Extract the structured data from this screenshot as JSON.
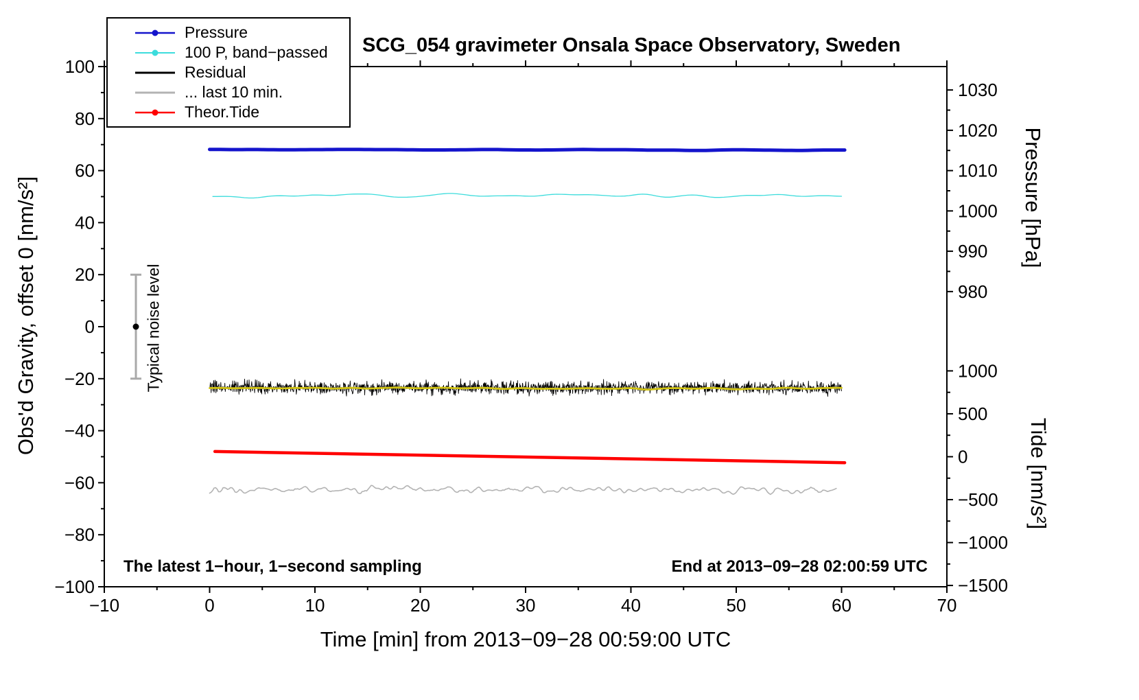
{
  "chart_data": {
    "type": "line",
    "title": "SCG_054 gravimeter Onsala Space Observatory, Sweden",
    "annotations": {
      "sampling": "The latest 1−hour, 1−second sampling",
      "end_time": "End at 2013−09−28 02:00:59 UTC"
    },
    "axes": {
      "x": {
        "label": "Time [min] from 2013−09−28 00:59:00 UTC",
        "min": -10,
        "max": 70,
        "ticks": [
          -10,
          0,
          10,
          20,
          30,
          40,
          50,
          60,
          70
        ],
        "minor_step": 5
      },
      "y_left": {
        "label": "Obs'd Gravity, offset 0 [nm/s²]",
        "min": -100,
        "max": 100,
        "ticks": [
          -100,
          -80,
          -60,
          -40,
          -20,
          0,
          20,
          40,
          60,
          80,
          100
        ],
        "minor_step": 10
      },
      "y_pressure": {
        "label": "Pressure [hPa]",
        "ticks": [
          {
            "value": 1030,
            "pos": 91.0
          },
          {
            "value": 1020,
            "pos": 75.5
          },
          {
            "value": 1010,
            "pos": 60.0
          },
          {
            "value": 1000,
            "pos": 44.5
          },
          {
            "value": 990,
            "pos": 29.0
          },
          {
            "value": 980,
            "pos": 13.5
          }
        ]
      },
      "y_tide": {
        "label": "Tide [nm/s²]",
        "ticks": [
          {
            "value": 1000,
            "pos": -17.0
          },
          {
            "value": 500,
            "pos": -33.5
          },
          {
            "value": 0,
            "pos": -50.0
          },
          {
            "value": -500,
            "pos": -66.5
          },
          {
            "value": -1000,
            "pos": -83.0
          },
          {
            "value": -1500,
            "pos": -99.5
          }
        ]
      }
    },
    "legend": {
      "items": [
        {
          "label": "Pressure",
          "color": "#1414cc",
          "marker": true,
          "line_width": 2.5
        },
        {
          "label": "100 P, band−passed",
          "color": "#3cdcdc",
          "marker": true,
          "line_width": 2.0
        },
        {
          "label": "Residual",
          "color": "#000000",
          "marker": false,
          "line_width": 3.0
        },
        {
          "label": "... last 10 min.",
          "color": "#b3b3b3",
          "marker": false,
          "line_width": 3.0
        },
        {
          "label": "Theor.Tide",
          "color": "#ff0000",
          "marker": true,
          "line_width": 2.5
        }
      ]
    },
    "noise_marker": {
      "label": "Typical noise level",
      "x": -7,
      "y": 0,
      "half_range": 20,
      "bar_color": "#a9a9a9",
      "dot_color": "#000000"
    },
    "series": [
      {
        "name": "Pressure",
        "color": "#1414cc",
        "width": 5.0,
        "x_start": 0.0,
        "x_end": 60.3,
        "y_start": 68.1,
        "y_end": 68.0,
        "points": 120,
        "smooth": 10,
        "noise_amp": 0.3,
        "seed": 11,
        "axis_note": "≈1014 hPa on pressure axis"
      },
      {
        "name": "100 P, band−passed",
        "color": "#3cdcdc",
        "width": 1.3,
        "x_start": 0.3,
        "x_end": 60.0,
        "y_start": 50.7,
        "y_end": 50.2,
        "points": 140,
        "smooth": 7,
        "noise_amp": 1.2,
        "seed": 22
      },
      {
        "name": "Residual",
        "color": "#000000",
        "width": 0.9,
        "x_start": 0.0,
        "x_end": 60.0,
        "y_start": -23.4,
        "y_end": -23.6,
        "points": 1700,
        "smooth": 0,
        "noise_amp": 4.2,
        "seed": 33
      },
      {
        "name": "Residual mean",
        "color": "#d2c411",
        "width": 2.8,
        "x_start": 0.0,
        "x_end": 60.0,
        "y_start": -23.6,
        "y_end": -23.8,
        "points": 220,
        "smooth": 8,
        "noise_amp": 0.45,
        "seed": 44
      },
      {
        "name": "Theor.Tide",
        "color": "#ff0000",
        "width": 4.5,
        "x_start": 0.5,
        "x_end": 60.3,
        "y_start": -48.0,
        "y_end": -52.3,
        "points": 2,
        "smooth": 0,
        "noise_amp": 0,
        "seed": 55,
        "axis_note": "≈+60 to −70 nm/s² on tide axis"
      },
      {
        "name": "... last 10 min.",
        "color": "#b3b3b3",
        "width": 1.6,
        "x_start": 0.0,
        "x_end": 59.5,
        "y_start": -62.3,
        "y_end": -63.0,
        "points": 420,
        "smooth": 2,
        "noise_amp": 1.7,
        "seed": 66
      }
    ]
  }
}
